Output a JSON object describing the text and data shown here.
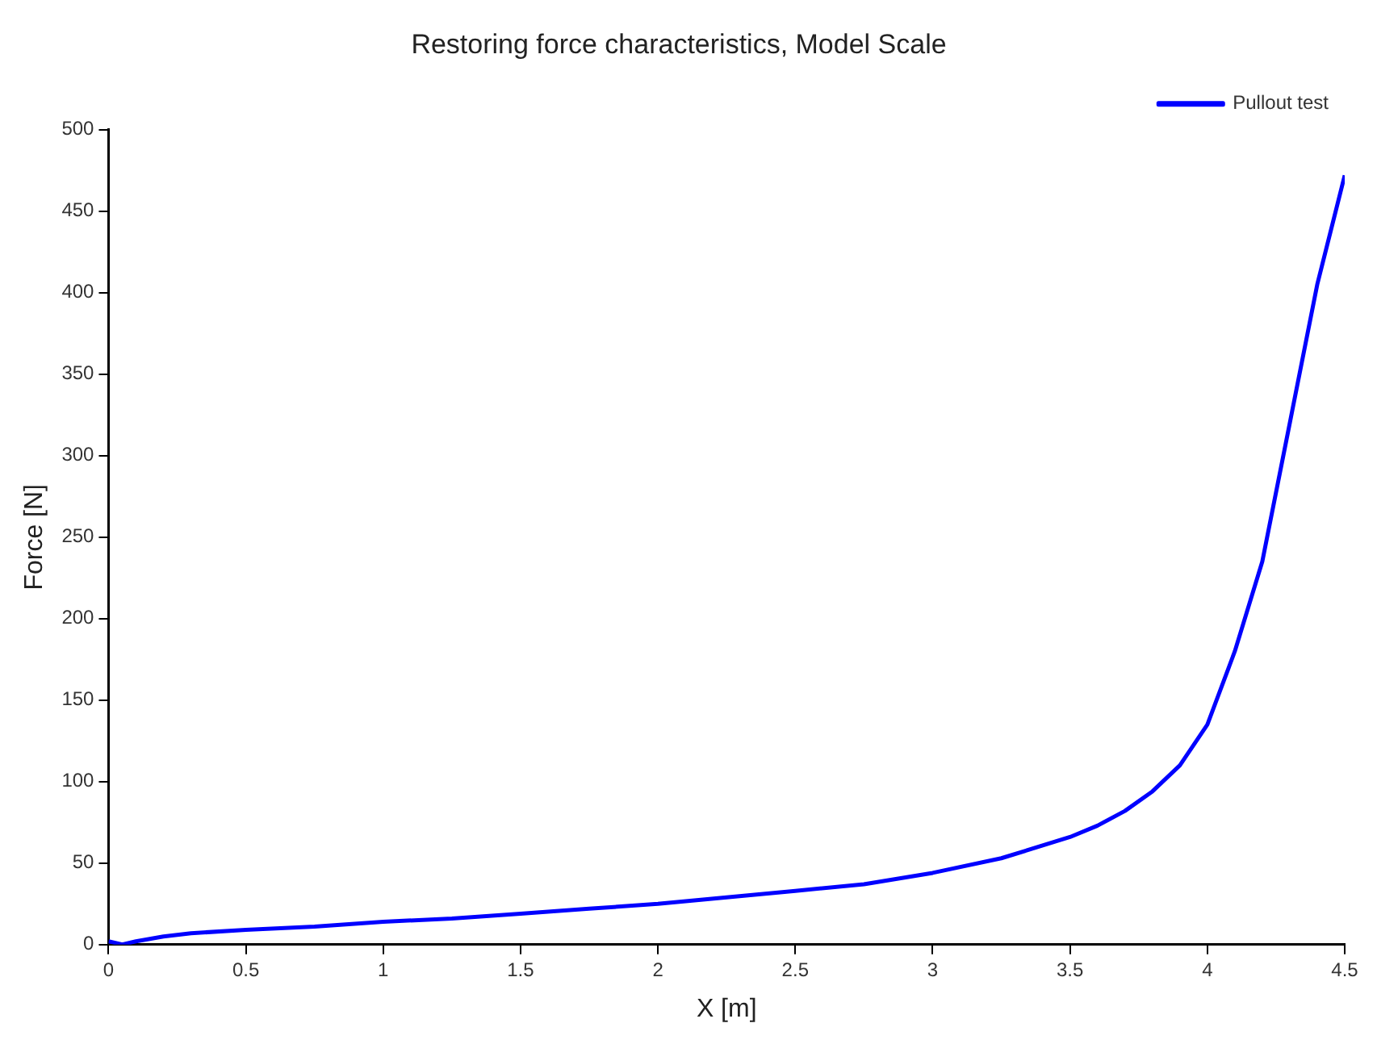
{
  "chart_data": {
    "type": "line",
    "title": "Restoring force characteristics, Model Scale",
    "xlabel": "X [m]",
    "ylabel": "Force [N]",
    "x": [
      0,
      0.05,
      0.1,
      0.2,
      0.3,
      0.5,
      0.75,
      1,
      1.25,
      1.5,
      1.75,
      2,
      2.25,
      2.5,
      2.75,
      3,
      3.25,
      3.5,
      3.6,
      3.7,
      3.8,
      3.9,
      4,
      4.1,
      4.2,
      4.3,
      4.4,
      4.5
    ],
    "series": [
      {
        "name": "Pullout test",
        "color": "#0000ff",
        "values": [
          2,
          0,
          2,
          5,
          7,
          9,
          11,
          14,
          16,
          19,
          22,
          25,
          29,
          33,
          37,
          44,
          53,
          66,
          73,
          82,
          94,
          110,
          135,
          180,
          235,
          320,
          405,
          472
        ]
      }
    ],
    "xlim": [
      0,
      4.5
    ],
    "xticks": [
      0,
      0.5,
      1,
      1.5,
      2,
      2.5,
      3,
      3.5,
      4,
      4.5
    ],
    "ylim": [
      0,
      500
    ],
    "yticks": [
      0,
      50,
      100,
      150,
      200,
      250,
      300,
      350,
      400,
      450,
      500
    ],
    "grid": false,
    "legend": "top right",
    "marker": "none",
    "line_style": "solid"
  }
}
